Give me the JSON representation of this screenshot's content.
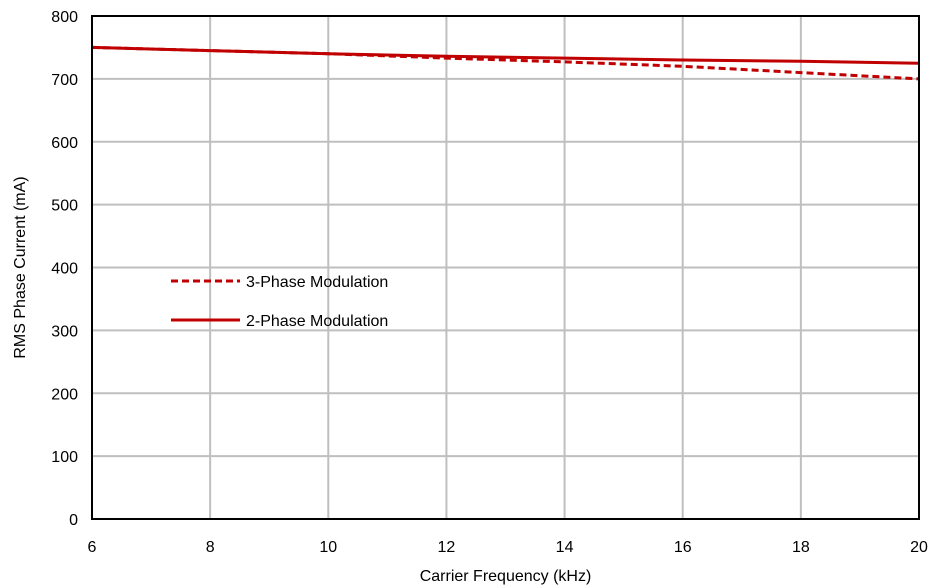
{
  "chart_data": {
    "type": "line",
    "title": "",
    "xlabel": "Carrier Frequency (kHz)",
    "ylabel": "RMS Phase Current (mA)",
    "xlim": [
      6,
      20
    ],
    "ylim": [
      0,
      800
    ],
    "xticks": [
      "6",
      "8",
      "10",
      "12",
      "14",
      "16",
      "18",
      "20"
    ],
    "yticks": [
      "0",
      "100",
      "200",
      "300",
      "400",
      "500",
      "600",
      "700",
      "800"
    ],
    "grid": true,
    "legend_position": "middle-left",
    "series_color": "#C00000",
    "series": [
      {
        "name": "3-Phase Modulation",
        "style": "dashed",
        "x": [
          6,
          8,
          10,
          12,
          14,
          16,
          18,
          20
        ],
        "y": [
          750,
          745,
          740,
          733,
          727,
          720,
          710,
          700
        ]
      },
      {
        "name": "2-Phase Modulation",
        "style": "solid",
        "x": [
          6,
          8,
          10,
          12,
          14,
          16,
          18,
          20
        ],
        "y": [
          750,
          745,
          740,
          736,
          733,
          730,
          728,
          725
        ]
      }
    ]
  }
}
